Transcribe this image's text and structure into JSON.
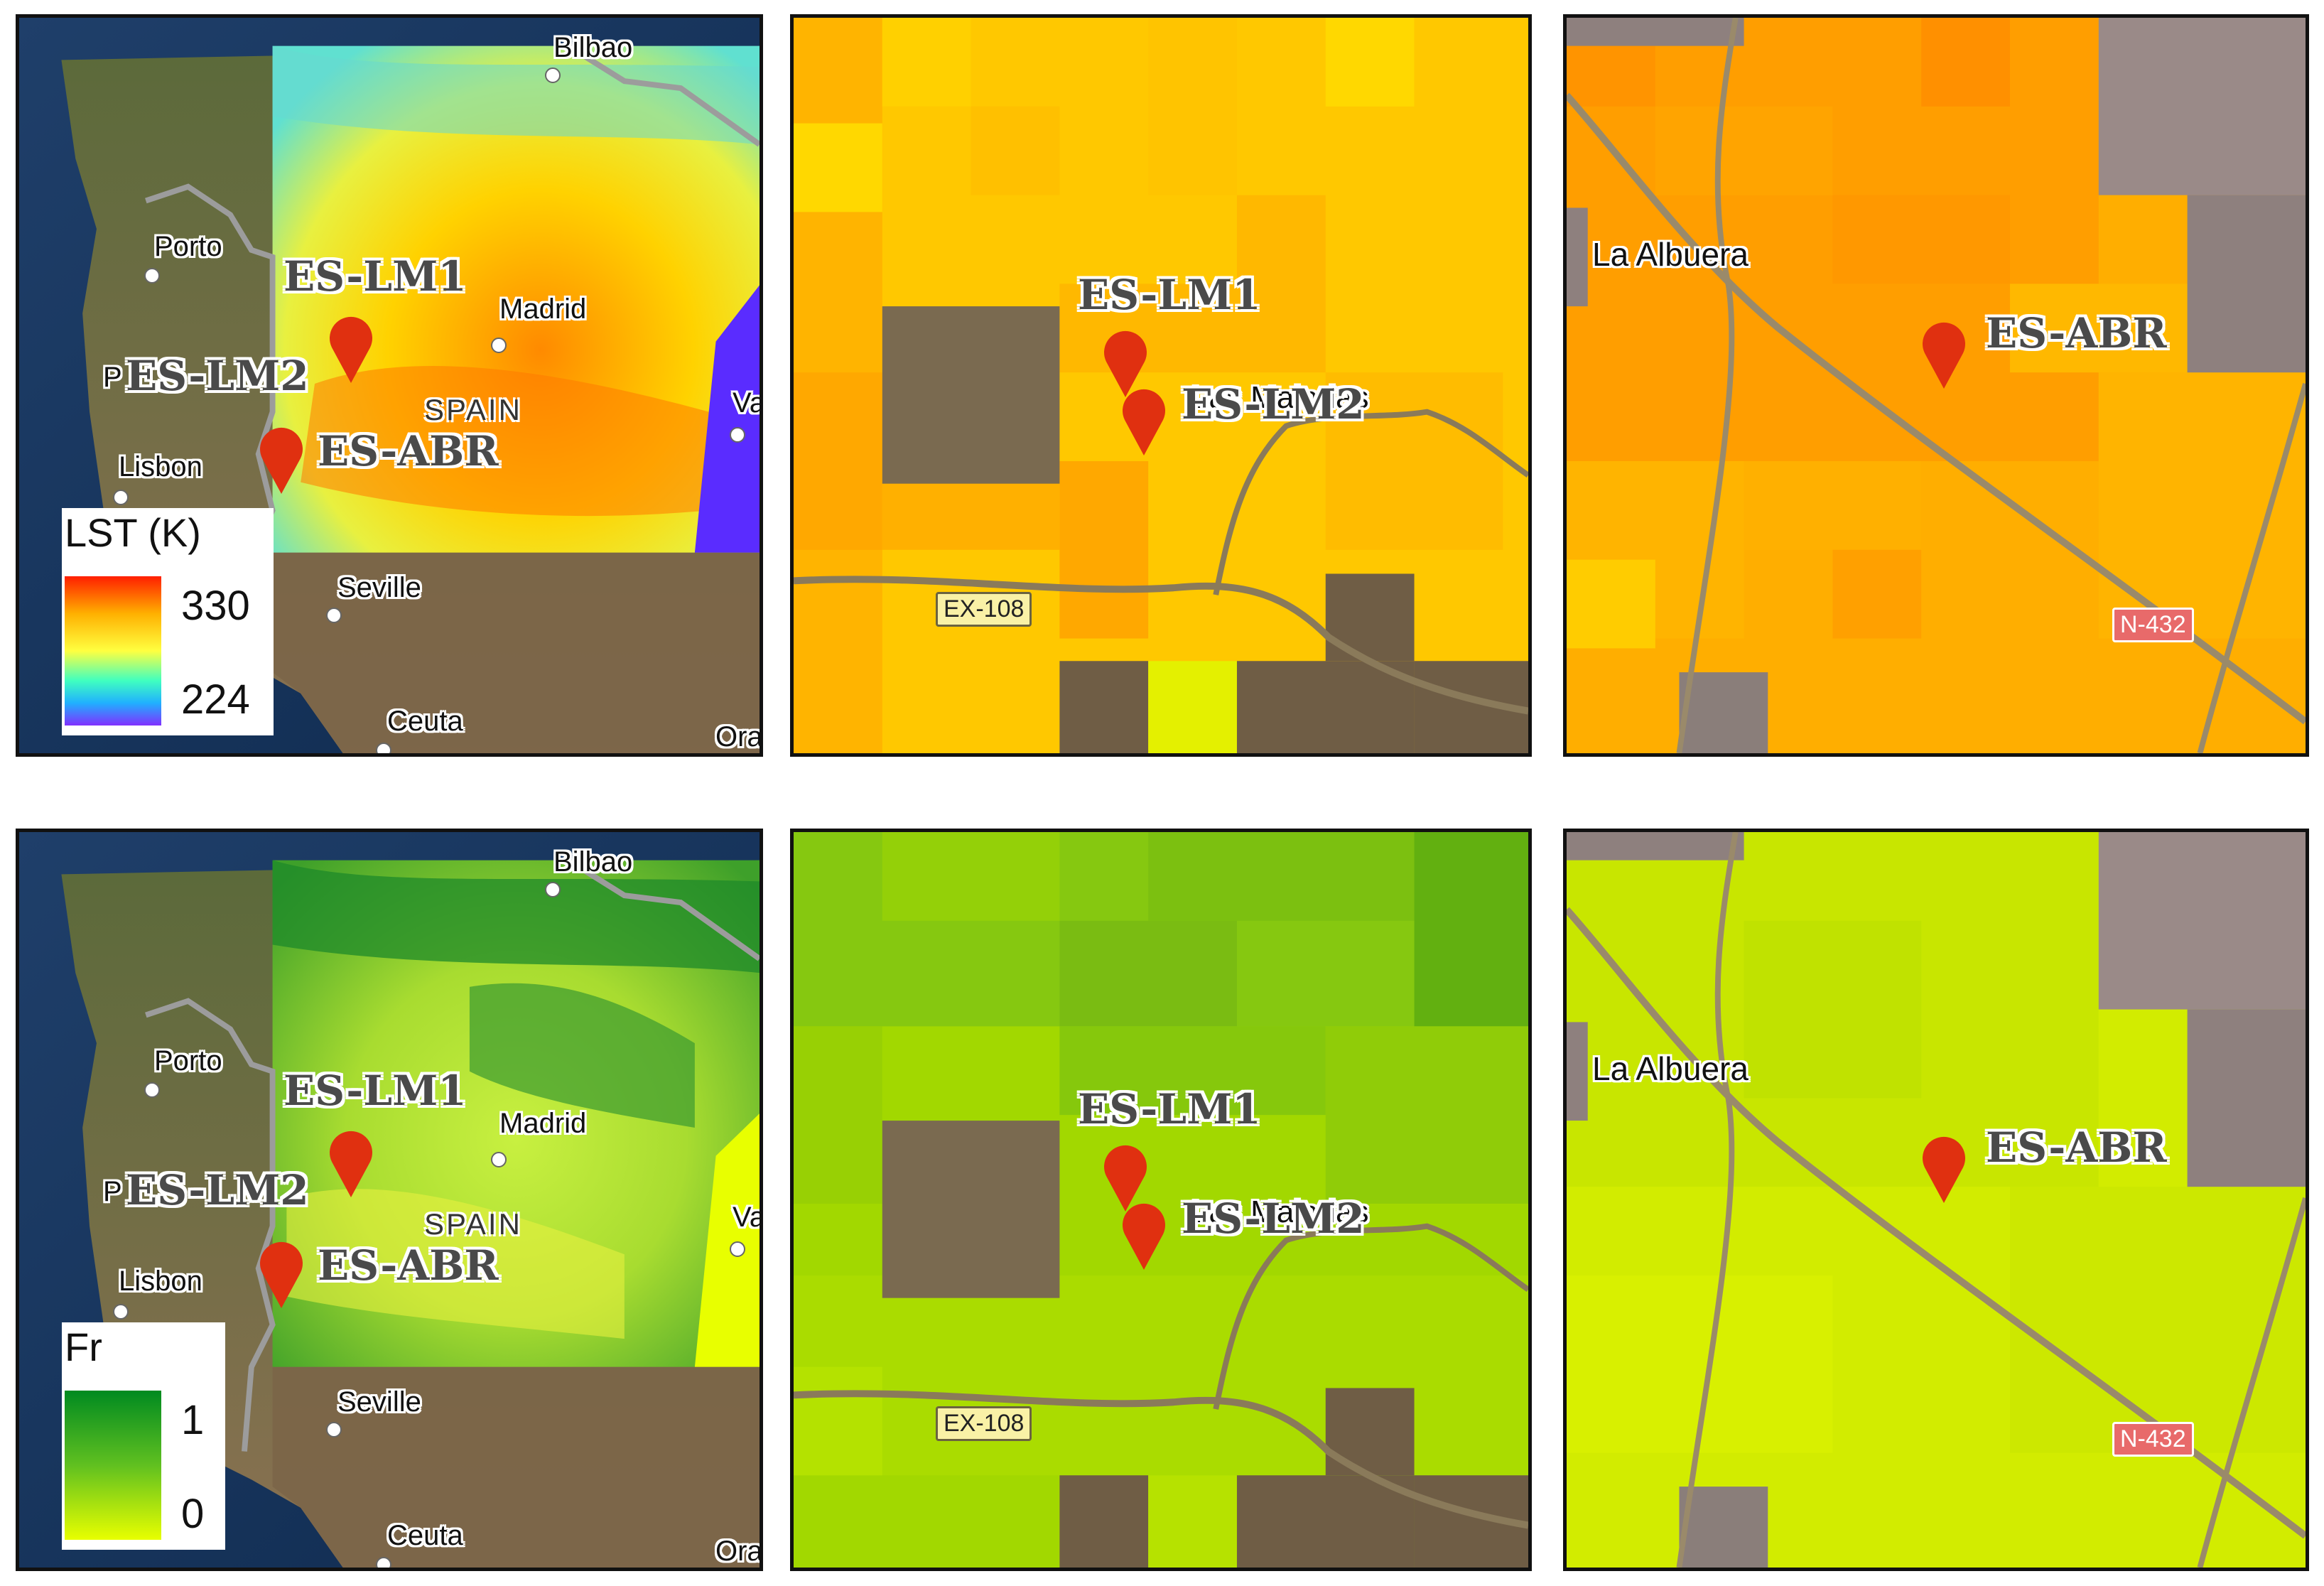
{
  "colors": {
    "lst_ramp": [
      "#ff1e00",
      "#ffb000",
      "#ffff40",
      "#40ffc0",
      "#20b0ff",
      "#8030ff"
    ],
    "fr_ramp": [
      "#008a20",
      "#60c020",
      "#e8ff00"
    ],
    "marker": "#e03010",
    "border": "#111111"
  },
  "rows": [
    {
      "variable": "LST",
      "legend": {
        "title": "LST (K)",
        "max": "330",
        "min": "224"
      },
      "overview": {
        "cities": [
          "Bilbao",
          "Porto",
          "Madrid",
          "Lisbon",
          "Seville",
          "Ceuta",
          "Ora",
          "Va",
          "P"
        ],
        "country": "SPAIN",
        "sites": [
          "ES-LM1",
          "ES-LM2",
          "ES-ABR"
        ]
      },
      "zoom1": {
        "sites": [
          "ES-LM1",
          "ES-LM2"
        ],
        "place": "Las Majadas",
        "road": "EX-108"
      },
      "zoom2": {
        "sites": [
          "ES-ABR"
        ],
        "place": "La Albuera",
        "road": "N-432"
      }
    },
    {
      "variable": "Fr",
      "legend": {
        "title": "Fr",
        "max": "1",
        "min": "0"
      },
      "overview": {
        "cities": [
          "Bilbao",
          "Porto",
          "Madrid",
          "Lisbon",
          "Seville",
          "Ceuta",
          "Ora",
          "Va",
          "P"
        ],
        "country": "SPAIN",
        "sites": [
          "ES-LM1",
          "ES-LM2",
          "ES-ABR"
        ]
      },
      "zoom1": {
        "sites": [
          "ES-LM1",
          "ES-LM2"
        ],
        "place": "Las Majadas",
        "road": "EX-108"
      },
      "zoom2": {
        "sites": [
          "ES-ABR"
        ],
        "place": "La Albuera",
        "road": "N-432"
      }
    }
  ]
}
